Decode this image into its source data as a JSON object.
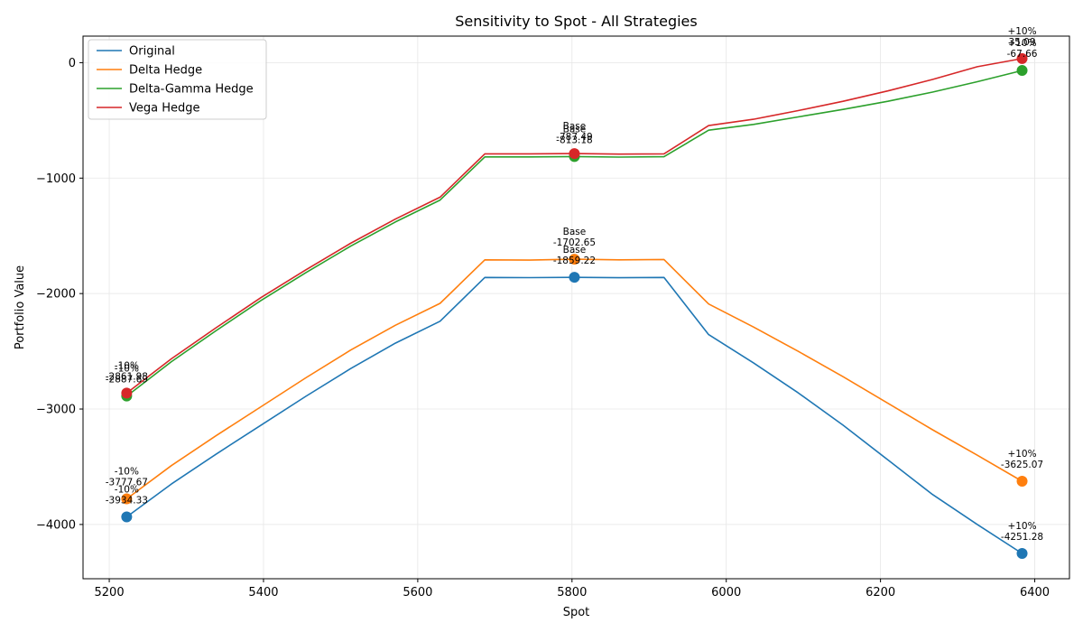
{
  "chart_data": {
    "type": "line",
    "title": "Sensitivity to Spot - All Strategies",
    "xlabel": "Spot",
    "ylabel": "Portfolio Value",
    "xlim": [
      5166,
      6445
    ],
    "ylim": [
      -4470,
      230
    ],
    "xticks": [
      5200,
      5400,
      5600,
      5800,
      6000,
      6200,
      6400
    ],
    "yticks": [
      -4000,
      -3000,
      -2000,
      -1000,
      0
    ],
    "grid": true,
    "legend_position": "top-left",
    "x": [
      5222.6,
      5280.6,
      5338.7,
      5396.7,
      5454.8,
      5512.8,
      5570.9,
      5628.9,
      5687.0,
      5745.0,
      5803.1,
      5861.1,
      5919.2,
      5977.2,
      6035.3,
      6093.3,
      6151.4,
      6209.4,
      6267.5,
      6325.5,
      6383.6
    ],
    "series": [
      {
        "name": "Original",
        "color": "#1f77b4",
        "values": [
          -3934.33,
          -3650,
          -3390,
          -3140,
          -2890,
          -2650,
          -2430,
          -2240,
          -1860,
          -1862,
          -1859.22,
          -1863,
          -1860,
          -2355,
          -2600,
          -2860,
          -3140,
          -3440,
          -3740,
          -4000,
          -4251.28
        ]
      },
      {
        "name": "Delta Hedge",
        "color": "#ff7f0e",
        "values": [
          -3777.67,
          -3490,
          -3230,
          -2980,
          -2730,
          -2490,
          -2275,
          -2085,
          -1708,
          -1710,
          -1702.65,
          -1708,
          -1705,
          -2090,
          -2290,
          -2500,
          -2720,
          -2950,
          -3180,
          -3400,
          -3625.07
        ]
      },
      {
        "name": "Delta-Gamma Hedge",
        "color": "#2ca02c",
        "values": [
          -2887.69,
          -2590,
          -2320,
          -2060,
          -1820,
          -1590,
          -1380,
          -1190,
          -816,
          -816,
          -813.18,
          -818,
          -815,
          -585,
          -535,
          -470,
          -405,
          -335,
          -255,
          -165,
          -67.66
        ]
      },
      {
        "name": "Vega Hedge",
        "color": "#d62728",
        "values": [
          -2861.98,
          -2565,
          -2295,
          -2035,
          -1795,
          -1565,
          -1355,
          -1165,
          -790,
          -790,
          -787.49,
          -792,
          -790,
          -545,
          -490,
          -415,
          -335,
          -245,
          -145,
          -35,
          35.09
        ]
      }
    ],
    "markers": [
      {
        "series": 0,
        "points": [
          {
            "x": 5222.6,
            "y": -3934.33,
            "label": "-10%",
            "value_label": "-3934.33"
          },
          {
            "x": 5803.1,
            "y": -1859.22,
            "label": "Base",
            "value_label": "-1859.22"
          },
          {
            "x": 6383.6,
            "y": -4251.28,
            "label": "+10%",
            "value_label": "-4251.28"
          }
        ]
      },
      {
        "series": 1,
        "points": [
          {
            "x": 5222.6,
            "y": -3777.67,
            "label": "-10%",
            "value_label": "-3777.67"
          },
          {
            "x": 5803.1,
            "y": -1702.65,
            "label": "Base",
            "value_label": "-1702.65"
          },
          {
            "x": 6383.6,
            "y": -3625.07,
            "label": "+10%",
            "value_label": "-3625.07"
          }
        ]
      },
      {
        "series": 2,
        "points": [
          {
            "x": 5222.6,
            "y": -2887.69,
            "label": "-10%",
            "value_label": "-2887.69"
          },
          {
            "x": 5803.1,
            "y": -813.18,
            "label": "Base",
            "value_label": "-813.18"
          },
          {
            "x": 6383.6,
            "y": -67.66,
            "label": "+10%",
            "value_label": "-67.66"
          }
        ]
      },
      {
        "series": 3,
        "points": [
          {
            "x": 5222.6,
            "y": -2861.98,
            "label": "-10%",
            "value_label": "-2861.98"
          },
          {
            "x": 5803.1,
            "y": -787.49,
            "label": "Base",
            "value_label": "-787.49"
          },
          {
            "x": 6383.6,
            "y": 35.09,
            "label": "+10%",
            "value_label": "35.09"
          }
        ]
      }
    ]
  }
}
